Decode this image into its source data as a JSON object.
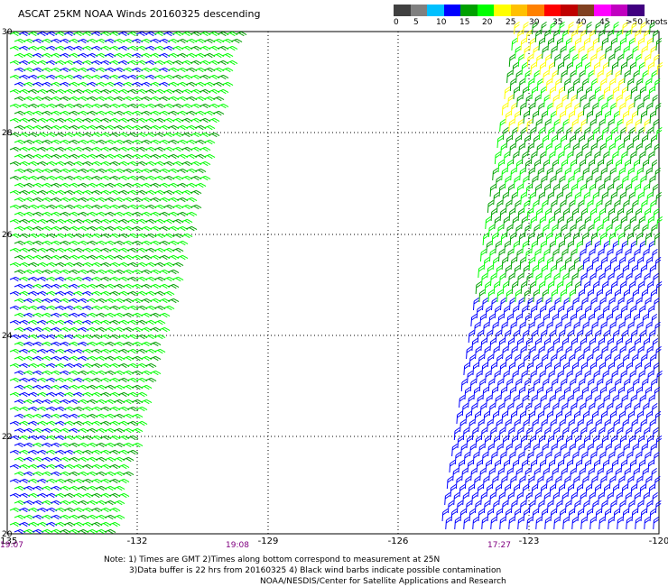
{
  "title": "ASCAT 25KM NOAA Winds 20160325 descending",
  "legend": {
    "colors": [
      "#404040",
      "#808080",
      "#00c0ff",
      "#0000ff",
      "#00a000",
      "#00ff00",
      "#ffff00",
      "#ffc000",
      "#ff8000",
      "#ff0000",
      "#c00000",
      "#804020",
      "#ff00ff",
      "#c000c0",
      "#400080"
    ],
    "labels": [
      "0",
      "5",
      "10",
      "15",
      "20",
      "25",
      "30",
      "35",
      "40",
      "45",
      ">50 knots"
    ]
  },
  "axes": {
    "lon_ticks": [
      "-135",
      "-132",
      "-129",
      "-126",
      "-123",
      "-120"
    ],
    "lat_ticks": [
      "30",
      "28",
      "26",
      "24",
      "22",
      "20"
    ]
  },
  "pass_times": [
    "19:07",
    "19:08",
    "17:27"
  ],
  "notes": [
    "Note: 1) Times are GMT 2)Times along bottom correspond to measurement at 25N",
    "3)Data buffer is 22 hrs from 20160325 4) Black wind barbs indicate possible contamination",
    "NOAA/NESDIS/Center for Satellite Applications and Research"
  ]
}
